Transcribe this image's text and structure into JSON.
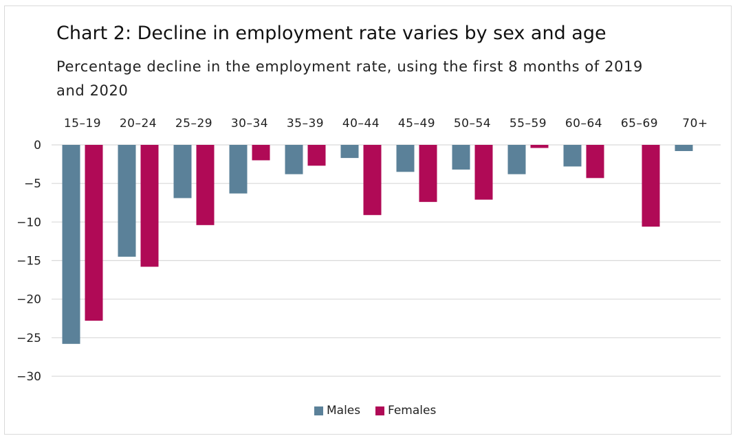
{
  "chart_data": {
    "type": "bar",
    "title": "Chart 2: Decline in employment rate varies by sex and age",
    "subtitle": "Percentage decline in the employment rate, using the first 8 months of 2019 and 2020",
    "categories": [
      "15–19",
      "20–24",
      "25–29",
      "30–34",
      "35–39",
      "40–44",
      "45–49",
      "50–54",
      "55–59",
      "60–64",
      "65–69",
      "70+"
    ],
    "series": [
      {
        "name": "Males",
        "color": "#5b8199",
        "values": [
          -25.8,
          -14.5,
          -6.9,
          -6.3,
          -3.8,
          -1.7,
          -3.5,
          -3.2,
          -3.8,
          -2.8,
          0,
          -0.8
        ]
      },
      {
        "name": "Females",
        "color": "#b00a56",
        "values": [
          -22.8,
          -15.8,
          -10.4,
          -2.0,
          -2.7,
          -9.1,
          -7.4,
          -7.1,
          -0.4,
          -4.3,
          -10.6,
          0
        ]
      }
    ],
    "ylim": [
      -30,
      0
    ],
    "yticks": [
      0,
      -5,
      -10,
      -15,
      -20,
      -25,
      -30
    ],
    "ytick_labels": [
      "0",
      "−5",
      "−10",
      "−15",
      "−20",
      "−25",
      "−30"
    ],
    "grid": true,
    "legend": "bottom"
  }
}
